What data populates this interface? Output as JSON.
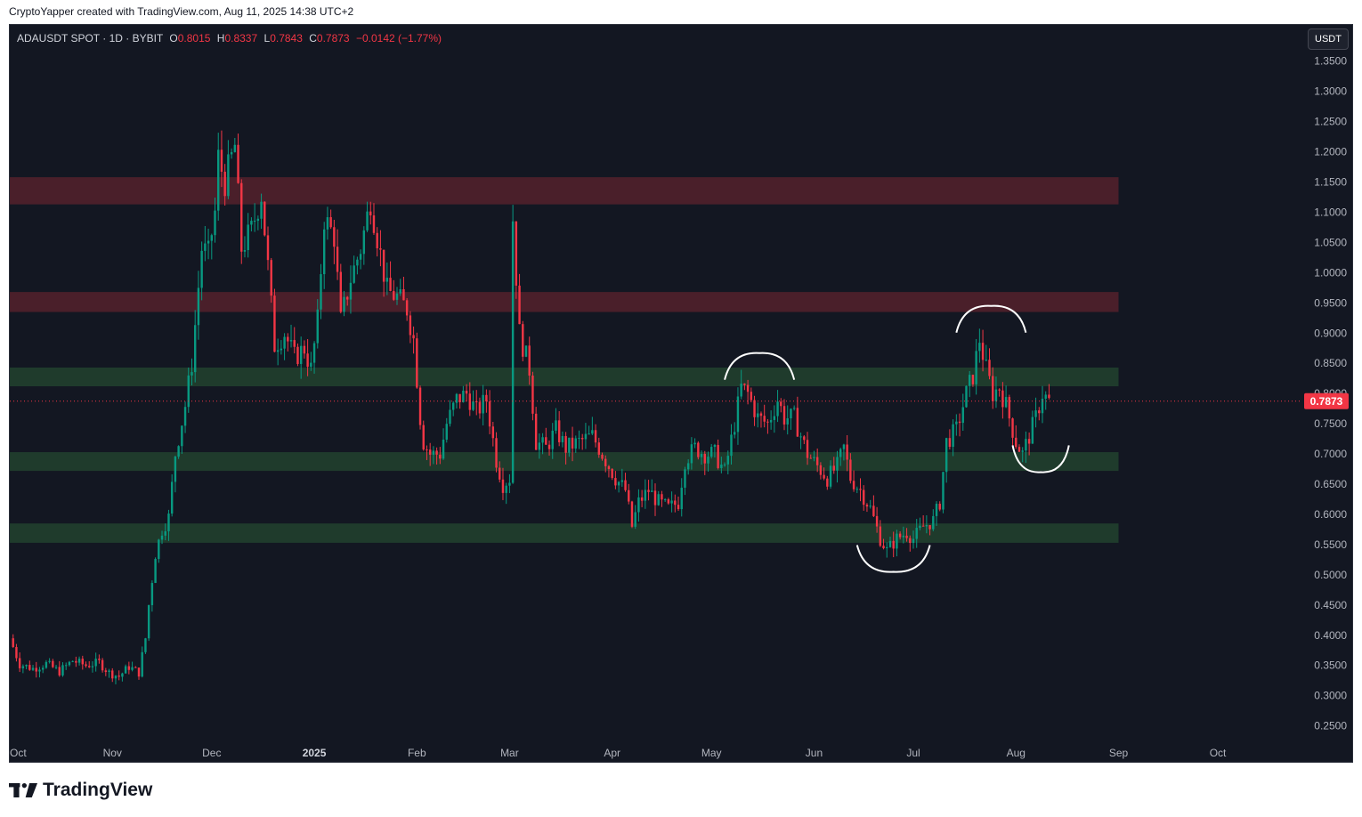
{
  "header": {
    "credit": "CryptoYapper created with TradingView.com, Aug 11, 2025 14:38 UTC+2"
  },
  "legend": {
    "symbol": "ADAUSDT SPOT · 1D · BYBIT",
    "open_label": "O",
    "open": "0.8015",
    "high_label": "H",
    "high": "0.8337",
    "low_label": "L",
    "low": "0.7843",
    "close_label": "C",
    "close": "0.7873",
    "change": "−0.0142 (−1.77%)"
  },
  "toolbar": {
    "currency_button": "USDT"
  },
  "brand": {
    "name": "TradingView"
  },
  "colors": {
    "background": "#131722",
    "up": "#089981",
    "down": "#f23645",
    "resistance_zone": "#4a1f2a",
    "support_zone": "#1f3b2c",
    "axis_text": "#b2b5be",
    "annotation": "#ffffff"
  },
  "icons": [
    "tradingview-logo-icon"
  ],
  "chart_data": {
    "type": "candlestick",
    "timeframe": "1D",
    "y_range": [
      0.22,
      1.41
    ],
    "y_ticks": [
      "0.2500",
      "0.3000",
      "0.3500",
      "0.4000",
      "0.4500",
      "0.5000",
      "0.5500",
      "0.6000",
      "0.6500",
      "0.7000",
      "0.7500",
      "0.8000",
      "0.8500",
      "0.9000",
      "0.9500",
      "1.0000",
      "1.0500",
      "1.1000",
      "1.1500",
      "1.2000",
      "1.2500",
      "1.3000",
      "1.3500"
    ],
    "x_ticks": [
      {
        "label": "Oct",
        "date": "2024-10-01"
      },
      {
        "label": "Nov",
        "date": "2024-11-01"
      },
      {
        "label": "Dec",
        "date": "2024-12-01"
      },
      {
        "label": "2025",
        "date": "2025-01-01",
        "bold": true
      },
      {
        "label": "Feb",
        "date": "2025-02-01"
      },
      {
        "label": "Mar",
        "date": "2025-03-01"
      },
      {
        "label": "Apr",
        "date": "2025-04-01"
      },
      {
        "label": "May",
        "date": "2025-05-01"
      },
      {
        "label": "Jun",
        "date": "2025-06-01"
      },
      {
        "label": "Jul",
        "date": "2025-07-01"
      },
      {
        "label": "Aug",
        "date": "2025-08-01"
      },
      {
        "label": "Sep",
        "date": "2025-09-01"
      },
      {
        "label": "Oct",
        "date": "2025-10-01"
      }
    ],
    "x_range": [
      "2024-10-01",
      "2025-10-26"
    ],
    "current_price": "0.7873",
    "zones": [
      {
        "kind": "resistance",
        "from": 1.113,
        "to": 1.158,
        "end": "2025-09-01"
      },
      {
        "kind": "resistance",
        "from": 0.935,
        "to": 0.968,
        "end": "2025-09-01"
      },
      {
        "kind": "support",
        "from": 0.812,
        "to": 0.843,
        "end": "2025-09-01"
      },
      {
        "kind": "support",
        "from": 0.672,
        "to": 0.703,
        "end": "2025-09-01"
      },
      {
        "kind": "support",
        "from": 0.553,
        "to": 0.585,
        "end": "2025-09-01"
      }
    ],
    "annotations": [
      {
        "shape": "arc-top",
        "date_from": "2025-05-05",
        "date_to": "2025-05-26",
        "level": 0.867
      },
      {
        "shape": "arc-bottom",
        "date_from": "2025-06-14",
        "date_to": "2025-07-06",
        "level": 0.505
      },
      {
        "shape": "arc-top",
        "date_from": "2025-07-14",
        "date_to": "2025-08-04",
        "level": 0.945
      },
      {
        "shape": "arc-bottom",
        "date_from": "2025-07-31",
        "date_to": "2025-08-17",
        "level": 0.67
      }
    ],
    "price_path": [
      [
        "2024-10-01",
        0.395
      ],
      [
        "2024-10-04",
        0.352
      ],
      [
        "2024-10-08",
        0.345
      ],
      [
        "2024-10-12",
        0.353
      ],
      [
        "2024-10-16",
        0.34
      ],
      [
        "2024-10-20",
        0.358
      ],
      [
        "2024-10-24",
        0.35
      ],
      [
        "2024-10-28",
        0.355
      ],
      [
        "2024-10-31",
        0.338
      ],
      [
        "2024-11-03",
        0.332
      ],
      [
        "2024-11-06",
        0.348
      ],
      [
        "2024-11-09",
        0.338
      ],
      [
        "2024-11-11",
        0.395
      ],
      [
        "2024-11-12",
        0.45
      ],
      [
        "2024-11-14",
        0.535
      ],
      [
        "2024-11-16",
        0.575
      ],
      [
        "2024-11-18",
        0.595
      ],
      [
        "2024-11-20",
        0.7
      ],
      [
        "2024-11-23",
        0.78
      ],
      [
        "2024-11-25",
        0.85
      ],
      [
        "2024-11-28",
        1.04
      ],
      [
        "2024-11-30",
        1.03
      ],
      [
        "2024-12-02",
        1.1
      ],
      [
        "2024-12-03",
        1.19
      ],
      [
        "2024-12-05",
        1.15
      ],
      [
        "2024-12-08",
        1.21
      ],
      [
        "2024-12-10",
        1.04
      ],
      [
        "2024-12-13",
        1.07
      ],
      [
        "2024-12-16",
        1.13
      ],
      [
        "2024-12-18",
        1.01
      ],
      [
        "2024-12-20",
        0.88
      ],
      [
        "2024-12-23",
        0.9
      ],
      [
        "2024-12-26",
        0.86
      ],
      [
        "2024-12-29",
        0.875
      ],
      [
        "2024-12-31",
        0.84
      ],
      [
        "2025-01-02",
        0.92
      ],
      [
        "2025-01-04",
        1.09
      ],
      [
        "2025-01-07",
        1.06
      ],
      [
        "2025-01-09",
        0.92
      ],
      [
        "2025-01-12",
        0.99
      ],
      [
        "2025-01-15",
        1.04
      ],
      [
        "2025-01-18",
        1.12
      ],
      [
        "2025-01-20",
        1.06
      ],
      [
        "2025-01-23",
        0.97
      ],
      [
        "2025-01-26",
        0.96
      ],
      [
        "2025-01-29",
        0.94
      ],
      [
        "2025-01-31",
        0.89
      ],
      [
        "2025-02-02",
        0.76
      ],
      [
        "2025-02-03",
        0.72
      ],
      [
        "2025-02-05",
        0.7
      ],
      [
        "2025-02-08",
        0.7
      ],
      [
        "2025-02-10",
        0.75
      ],
      [
        "2025-02-13",
        0.79
      ],
      [
        "2025-02-16",
        0.8
      ],
      [
        "2025-02-19",
        0.77
      ],
      [
        "2025-02-22",
        0.79
      ],
      [
        "2025-02-25",
        0.69
      ],
      [
        "2025-02-27",
        0.65
      ],
      [
        "2025-03-01",
        0.66
      ],
      [
        "2025-03-02",
        1.09
      ],
      [
        "2025-03-04",
        0.9
      ],
      [
        "2025-03-07",
        0.84
      ],
      [
        "2025-03-09",
        0.72
      ],
      [
        "2025-03-12",
        0.71
      ],
      [
        "2025-03-15",
        0.74
      ],
      [
        "2025-03-18",
        0.71
      ],
      [
        "2025-03-22",
        0.72
      ],
      [
        "2025-03-26",
        0.73
      ],
      [
        "2025-03-29",
        0.7
      ],
      [
        "2025-04-02",
        0.66
      ],
      [
        "2025-04-05",
        0.64
      ],
      [
        "2025-04-07",
        0.58
      ],
      [
        "2025-04-09",
        0.62
      ],
      [
        "2025-04-12",
        0.64
      ],
      [
        "2025-04-15",
        0.62
      ],
      [
        "2025-04-18",
        0.61
      ],
      [
        "2025-04-21",
        0.62
      ],
      [
        "2025-04-23",
        0.69
      ],
      [
        "2025-04-26",
        0.71
      ],
      [
        "2025-04-29",
        0.7
      ],
      [
        "2025-05-02",
        0.7
      ],
      [
        "2025-05-05",
        0.67
      ],
      [
        "2025-05-08",
        0.75
      ],
      [
        "2025-05-10",
        0.81
      ],
      [
        "2025-05-12",
        0.8
      ],
      [
        "2025-05-15",
        0.76
      ],
      [
        "2025-05-18",
        0.75
      ],
      [
        "2025-05-21",
        0.79
      ],
      [
        "2025-05-23",
        0.76
      ],
      [
        "2025-05-26",
        0.76
      ],
      [
        "2025-05-30",
        0.7
      ],
      [
        "2025-06-02",
        0.68
      ],
      [
        "2025-06-05",
        0.66
      ],
      [
        "2025-06-08",
        0.68
      ],
      [
        "2025-06-10",
        0.71
      ],
      [
        "2025-06-12",
        0.66
      ],
      [
        "2025-06-15",
        0.64
      ],
      [
        "2025-06-18",
        0.61
      ],
      [
        "2025-06-21",
        0.56
      ],
      [
        "2025-06-23",
        0.54
      ],
      [
        "2025-06-26",
        0.56
      ],
      [
        "2025-06-29",
        0.57
      ],
      [
        "2025-07-01",
        0.56
      ],
      [
        "2025-07-04",
        0.58
      ],
      [
        "2025-07-07",
        0.59
      ],
      [
        "2025-07-09",
        0.62
      ],
      [
        "2025-07-11",
        0.72
      ],
      [
        "2025-07-14",
        0.74
      ],
      [
        "2025-07-17",
        0.8
      ],
      [
        "2025-07-19",
        0.83
      ],
      [
        "2025-07-21",
        0.89
      ],
      [
        "2025-07-23",
        0.84
      ],
      [
        "2025-07-25",
        0.8
      ],
      [
        "2025-07-27",
        0.81
      ],
      [
        "2025-07-29",
        0.78
      ],
      [
        "2025-08-01",
        0.72
      ],
      [
        "2025-08-03",
        0.7
      ],
      [
        "2025-08-05",
        0.73
      ],
      [
        "2025-08-07",
        0.76
      ],
      [
        "2025-08-09",
        0.8
      ],
      [
        "2025-08-11",
        0.787
      ]
    ]
  }
}
